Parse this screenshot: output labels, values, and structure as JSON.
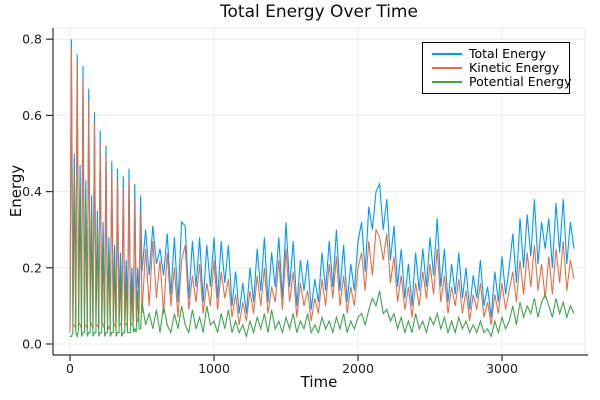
{
  "chart_data": {
    "type": "line",
    "title": "Total Energy Over Time",
    "xlabel": "Time",
    "ylabel": "Energy",
    "xlim": [
      0,
      3600
    ],
    "ylim": [
      0,
      0.8
    ],
    "x_ticks": [
      0,
      1000,
      2000,
      3000
    ],
    "x_tick_labels": [
      "0",
      "1000",
      "2000",
      "3000"
    ],
    "y_ticks": [
      0,
      0.2,
      0.4,
      0.6,
      0.8
    ],
    "y_tick_labels": [
      "0.0",
      "0.2",
      "0.4",
      "0.6",
      "0.8"
    ],
    "grid": true,
    "legend_position": "top-right",
    "t": [
      0,
      10,
      20,
      30,
      40,
      50,
      60,
      70,
      80,
      90,
      100,
      110,
      120,
      130,
      140,
      150,
      160,
      170,
      180,
      190,
      200,
      210,
      220,
      230,
      240,
      250,
      260,
      270,
      280,
      290,
      300,
      310,
      320,
      330,
      340,
      350,
      360,
      370,
      380,
      390,
      400,
      410,
      420,
      430,
      440,
      450,
      460,
      470,
      480,
      490,
      500,
      525,
      550,
      575,
      600,
      625,
      650,
      675,
      700,
      725,
      750,
      775,
      800,
      825,
      850,
      875,
      900,
      925,
      950,
      975,
      1000,
      1025,
      1050,
      1075,
      1100,
      1125,
      1150,
      1175,
      1200,
      1225,
      1250,
      1275,
      1300,
      1325,
      1350,
      1375,
      1400,
      1425,
      1450,
      1475,
      1500,
      1525,
      1550,
      1575,
      1600,
      1625,
      1650,
      1675,
      1700,
      1725,
      1750,
      1775,
      1800,
      1825,
      1850,
      1875,
      1900,
      1925,
      1950,
      1975,
      2000,
      2025,
      2050,
      2075,
      2100,
      2125,
      2150,
      2175,
      2200,
      2225,
      2250,
      2275,
      2300,
      2325,
      2350,
      2375,
      2400,
      2425,
      2450,
      2475,
      2500,
      2525,
      2550,
      2575,
      2600,
      2625,
      2650,
      2675,
      2700,
      2725,
      2750,
      2775,
      2800,
      2825,
      2850,
      2875,
      2900,
      2925,
      2950,
      2975,
      3000,
      3025,
      3050,
      3075,
      3100,
      3125,
      3150,
      3175,
      3200,
      3225,
      3250,
      3275,
      3300,
      3325,
      3350,
      3375,
      3400,
      3425,
      3450,
      3475,
      3500
    ],
    "series": [
      {
        "name": "Total Energy",
        "color": "#009AFA",
        "values": [
          0.05,
          0.8,
          0.08,
          0.5,
          0.07,
          0.76,
          0.1,
          0.47,
          0.06,
          0.73,
          0.08,
          0.43,
          0.06,
          0.67,
          0.09,
          0.39,
          0.06,
          0.61,
          0.08,
          0.35,
          0.06,
          0.56,
          0.09,
          0.32,
          0.06,
          0.52,
          0.08,
          0.28,
          0.07,
          0.48,
          0.09,
          0.26,
          0.06,
          0.46,
          0.08,
          0.24,
          0.08,
          0.44,
          0.08,
          0.22,
          0.09,
          0.46,
          0.08,
          0.2,
          0.09,
          0.42,
          0.1,
          0.2,
          0.12,
          0.39,
          0.19,
          0.3,
          0.18,
          0.31,
          0.21,
          0.25,
          0.18,
          0.29,
          0.13,
          0.28,
          0.11,
          0.32,
          0.31,
          0.12,
          0.27,
          0.15,
          0.28,
          0.11,
          0.26,
          0.15,
          0.28,
          0.12,
          0.27,
          0.16,
          0.26,
          0.1,
          0.19,
          0.08,
          0.16,
          0.08,
          0.2,
          0.11,
          0.25,
          0.14,
          0.28,
          0.11,
          0.24,
          0.15,
          0.28,
          0.12,
          0.32,
          0.15,
          0.27,
          0.1,
          0.22,
          0.14,
          0.22,
          0.09,
          0.17,
          0.11,
          0.24,
          0.14,
          0.27,
          0.15,
          0.3,
          0.14,
          0.26,
          0.11,
          0.21,
          0.14,
          0.27,
          0.32,
          0.19,
          0.36,
          0.3,
          0.4,
          0.42,
          0.3,
          0.38,
          0.22,
          0.31,
          0.15,
          0.25,
          0.12,
          0.21,
          0.1,
          0.24,
          0.14,
          0.25,
          0.15,
          0.28,
          0.18,
          0.33,
          0.15,
          0.25,
          0.11,
          0.21,
          0.13,
          0.24,
          0.12,
          0.2,
          0.09,
          0.18,
          0.12,
          0.22,
          0.1,
          0.15,
          0.07,
          0.19,
          0.11,
          0.23,
          0.13,
          0.2,
          0.29,
          0.16,
          0.33,
          0.2,
          0.34,
          0.23,
          0.38,
          0.21,
          0.32,
          0.25,
          0.33,
          0.2,
          0.37,
          0.24,
          0.38,
          0.21,
          0.32,
          0.25
        ]
      },
      {
        "name": "Kinetic Energy",
        "color": "#E36F47",
        "values": [
          0.03,
          0.78,
          0.05,
          0.05,
          0.04,
          0.74,
          0.06,
          0.05,
          0.04,
          0.7,
          0.05,
          0.05,
          0.04,
          0.64,
          0.06,
          0.05,
          0.04,
          0.58,
          0.05,
          0.05,
          0.04,
          0.53,
          0.06,
          0.05,
          0.04,
          0.49,
          0.05,
          0.04,
          0.05,
          0.45,
          0.06,
          0.05,
          0.04,
          0.43,
          0.05,
          0.05,
          0.06,
          0.41,
          0.05,
          0.05,
          0.06,
          0.43,
          0.05,
          0.05,
          0.06,
          0.38,
          0.07,
          0.06,
          0.08,
          0.35,
          0.08,
          0.25,
          0.1,
          0.27,
          0.12,
          0.22,
          0.08,
          0.24,
          0.1,
          0.2,
          0.07,
          0.22,
          0.26,
          0.09,
          0.18,
          0.11,
          0.21,
          0.08,
          0.16,
          0.1,
          0.22,
          0.09,
          0.19,
          0.12,
          0.17,
          0.07,
          0.13,
          0.05,
          0.11,
          0.06,
          0.14,
          0.08,
          0.18,
          0.1,
          0.2,
          0.08,
          0.15,
          0.11,
          0.22,
          0.09,
          0.25,
          0.11,
          0.19,
          0.07,
          0.16,
          0.1,
          0.14,
          0.06,
          0.12,
          0.08,
          0.17,
          0.1,
          0.21,
          0.12,
          0.23,
          0.1,
          0.18,
          0.08,
          0.15,
          0.1,
          0.2,
          0.24,
          0.14,
          0.27,
          0.18,
          0.3,
          0.28,
          0.22,
          0.29,
          0.16,
          0.23,
          0.11,
          0.18,
          0.09,
          0.15,
          0.07,
          0.16,
          0.1,
          0.19,
          0.12,
          0.21,
          0.13,
          0.25,
          0.11,
          0.18,
          0.08,
          0.15,
          0.1,
          0.17,
          0.08,
          0.14,
          0.06,
          0.13,
          0.09,
          0.16,
          0.07,
          0.11,
          0.05,
          0.13,
          0.08,
          0.16,
          0.09,
          0.14,
          0.19,
          0.11,
          0.22,
          0.13,
          0.24,
          0.15,
          0.26,
          0.14,
          0.21,
          0.12,
          0.23,
          0.13,
          0.25,
          0.16,
          0.27,
          0.14,
          0.22,
          0.17
        ]
      },
      {
        "name": "Potential Energy",
        "color": "#3DA44D",
        "values": [
          0.02,
          0.02,
          0.03,
          0.45,
          0.03,
          0.02,
          0.04,
          0.42,
          0.02,
          0.03,
          0.03,
          0.38,
          0.02,
          0.03,
          0.03,
          0.34,
          0.02,
          0.03,
          0.03,
          0.3,
          0.02,
          0.03,
          0.03,
          0.27,
          0.02,
          0.03,
          0.03,
          0.24,
          0.02,
          0.03,
          0.03,
          0.21,
          0.02,
          0.03,
          0.03,
          0.19,
          0.02,
          0.03,
          0.03,
          0.17,
          0.03,
          0.03,
          0.03,
          0.15,
          0.03,
          0.04,
          0.03,
          0.14,
          0.04,
          0.04,
          0.11,
          0.05,
          0.08,
          0.04,
          0.09,
          0.03,
          0.1,
          0.05,
          0.03,
          0.08,
          0.04,
          0.1,
          0.05,
          0.03,
          0.09,
          0.04,
          0.07,
          0.03,
          0.1,
          0.05,
          0.06,
          0.03,
          0.08,
          0.04,
          0.09,
          0.03,
          0.06,
          0.03,
          0.05,
          0.02,
          0.06,
          0.03,
          0.07,
          0.04,
          0.08,
          0.03,
          0.09,
          0.04,
          0.06,
          0.03,
          0.07,
          0.04,
          0.08,
          0.03,
          0.06,
          0.04,
          0.08,
          0.03,
          0.05,
          0.03,
          0.07,
          0.04,
          0.06,
          0.03,
          0.07,
          0.04,
          0.08,
          0.03,
          0.06,
          0.04,
          0.07,
          0.08,
          0.05,
          0.09,
          0.12,
          0.1,
          0.14,
          0.08,
          0.09,
          0.06,
          0.08,
          0.04,
          0.07,
          0.03,
          0.06,
          0.03,
          0.08,
          0.04,
          0.06,
          0.03,
          0.07,
          0.05,
          0.08,
          0.04,
          0.07,
          0.03,
          0.06,
          0.03,
          0.07,
          0.04,
          0.06,
          0.03,
          0.05,
          0.03,
          0.06,
          0.03,
          0.04,
          0.02,
          0.06,
          0.03,
          0.07,
          0.04,
          0.06,
          0.1,
          0.05,
          0.11,
          0.07,
          0.1,
          0.08,
          0.12,
          0.07,
          0.11,
          0.13,
          0.1,
          0.07,
          0.12,
          0.08,
          0.11,
          0.07,
          0.1,
          0.08
        ]
      }
    ]
  }
}
